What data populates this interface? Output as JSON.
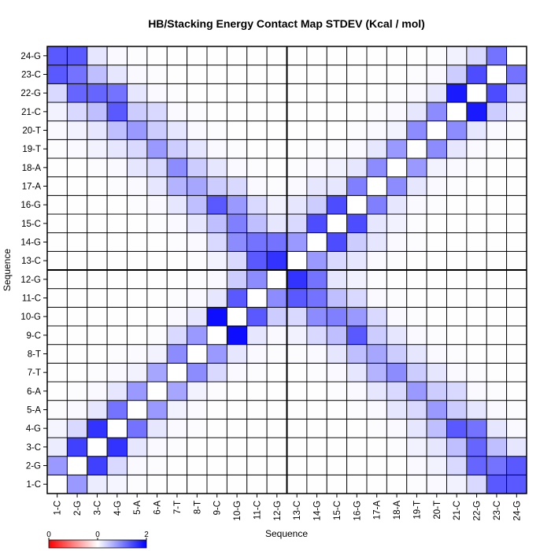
{
  "chart_data": {
    "type": "heatmap",
    "title": "HB/Stacking Energy Contact Map STDEV (Kcal / mol)",
    "xlabel": "Sequence",
    "ylabel": "Sequence",
    "categories": [
      "1-C",
      "2-G",
      "3-C",
      "4-G",
      "5-A",
      "6-A",
      "7-T",
      "8-T",
      "9-C",
      "10-G",
      "11-C",
      "12-G",
      "13-C",
      "14-G",
      "15-C",
      "16-G",
      "17-A",
      "18-A",
      "19-T",
      "20-T",
      "21-C",
      "22-G",
      "23-C",
      "24-G"
    ],
    "color_scale": {
      "min": 0,
      "mid": 0,
      "max": 2,
      "low_color": "#ff0000",
      "mid_color": "#ffffff",
      "high_color": "#0000ff"
    },
    "colorbar_ticks": [
      "0",
      "0",
      "2"
    ],
    "grid": true,
    "major_dividers_after_index": 12,
    "values": [
      [
        0.0,
        0.8,
        0.15,
        0.08,
        0.02,
        0.01,
        0.01,
        0.01,
        0.01,
        0.01,
        0.01,
        0.01,
        0.01,
        0.01,
        0.01,
        0.01,
        0.01,
        0.01,
        0.02,
        0.05,
        0.1,
        0.3,
        1.3,
        1.3
      ],
      [
        0.8,
        0.0,
        1.5,
        0.3,
        0.05,
        0.02,
        0.01,
        0.01,
        0.01,
        0.01,
        0.01,
        0.01,
        0.01,
        0.01,
        0.01,
        0.01,
        0.01,
        0.01,
        0.05,
        0.1,
        0.3,
        1.2,
        1.1,
        1.3
      ],
      [
        0.15,
        1.5,
        0.0,
        1.6,
        0.2,
        0.05,
        0.02,
        0.01,
        0.01,
        0.01,
        0.01,
        0.01,
        0.01,
        0.01,
        0.01,
        0.01,
        0.01,
        0.02,
        0.1,
        0.2,
        0.5,
        1.2,
        0.5,
        0.2
      ],
      [
        0.08,
        0.3,
        1.6,
        0.0,
        1.1,
        0.2,
        0.05,
        0.02,
        0.01,
        0.01,
        0.01,
        0.01,
        0.01,
        0.01,
        0.01,
        0.01,
        0.02,
        0.05,
        0.2,
        0.5,
        1.3,
        1.1,
        0.2,
        0.05
      ],
      [
        0.02,
        0.05,
        0.2,
        1.1,
        0.0,
        0.8,
        0.1,
        0.03,
        0.01,
        0.01,
        0.01,
        0.01,
        0.01,
        0.01,
        0.01,
        0.02,
        0.05,
        0.2,
        0.3,
        0.8,
        0.4,
        0.2,
        0.05,
        0.02
      ],
      [
        0.01,
        0.02,
        0.05,
        0.2,
        0.8,
        0.0,
        0.7,
        0.1,
        0.02,
        0.01,
        0.01,
        0.01,
        0.01,
        0.01,
        0.02,
        0.05,
        0.2,
        0.3,
        0.8,
        0.4,
        0.3,
        0.05,
        0.02,
        0.01
      ],
      [
        0.01,
        0.01,
        0.02,
        0.05,
        0.1,
        0.7,
        0.0,
        0.9,
        0.3,
        0.05,
        0.02,
        0.01,
        0.01,
        0.02,
        0.05,
        0.2,
        0.6,
        0.9,
        0.4,
        0.2,
        0.05,
        0.02,
        0.01,
        0.01
      ],
      [
        0.01,
        0.01,
        0.01,
        0.02,
        0.03,
        0.1,
        0.9,
        0.0,
        0.8,
        0.2,
        0.05,
        0.02,
        0.02,
        0.05,
        0.2,
        0.5,
        0.7,
        0.4,
        0.2,
        0.05,
        0.02,
        0.01,
        0.01,
        0.01
      ],
      [
        0.01,
        0.01,
        0.01,
        0.01,
        0.01,
        0.02,
        0.3,
        0.8,
        0.0,
        1.9,
        0.2,
        0.05,
        0.1,
        0.3,
        0.5,
        1.3,
        0.4,
        0.2,
        0.05,
        0.02,
        0.01,
        0.01,
        0.01,
        0.01
      ],
      [
        0.01,
        0.01,
        0.01,
        0.01,
        0.01,
        0.01,
        0.05,
        0.2,
        1.9,
        0.0,
        1.3,
        0.4,
        0.3,
        0.9,
        1.0,
        0.8,
        0.3,
        0.05,
        0.02,
        0.01,
        0.01,
        0.01,
        0.01,
        0.01
      ],
      [
        0.01,
        0.01,
        0.01,
        0.01,
        0.01,
        0.01,
        0.02,
        0.05,
        0.2,
        1.3,
        0.0,
        0.9,
        1.3,
        1.1,
        0.5,
        0.3,
        0.05,
        0.02,
        0.01,
        0.01,
        0.01,
        0.01,
        0.01,
        0.01
      ],
      [
        0.01,
        0.01,
        0.01,
        0.01,
        0.01,
        0.01,
        0.01,
        0.02,
        0.05,
        0.4,
        0.9,
        0.0,
        1.6,
        1.1,
        0.2,
        0.1,
        0.02,
        0.01,
        0.01,
        0.01,
        0.01,
        0.01,
        0.01,
        0.01
      ],
      [
        0.01,
        0.01,
        0.01,
        0.01,
        0.01,
        0.01,
        0.01,
        0.02,
        0.1,
        0.3,
        1.3,
        1.6,
        0.0,
        0.8,
        0.3,
        0.2,
        0.05,
        0.02,
        0.01,
        0.01,
        0.01,
        0.01,
        0.01,
        0.01
      ],
      [
        0.01,
        0.01,
        0.01,
        0.01,
        0.01,
        0.01,
        0.02,
        0.05,
        0.3,
        0.9,
        1.1,
        1.1,
        0.8,
        0.0,
        1.4,
        0.4,
        0.2,
        0.05,
        0.02,
        0.01,
        0.01,
        0.01,
        0.01,
        0.01
      ],
      [
        0.01,
        0.01,
        0.01,
        0.01,
        0.01,
        0.02,
        0.05,
        0.2,
        0.5,
        1.0,
        0.5,
        0.2,
        0.3,
        1.4,
        0.0,
        1.4,
        0.2,
        0.1,
        0.02,
        0.01,
        0.01,
        0.01,
        0.01,
        0.01
      ],
      [
        0.01,
        0.01,
        0.01,
        0.01,
        0.02,
        0.05,
        0.2,
        0.5,
        1.3,
        0.8,
        0.3,
        0.1,
        0.2,
        0.4,
        1.4,
        0.0,
        1.0,
        0.2,
        0.05,
        0.02,
        0.01,
        0.01,
        0.01,
        0.01
      ],
      [
        0.01,
        0.01,
        0.01,
        0.02,
        0.05,
        0.2,
        0.6,
        0.7,
        0.4,
        0.3,
        0.05,
        0.02,
        0.05,
        0.2,
        0.2,
        1.0,
        0.0,
        0.9,
        0.2,
        0.05,
        0.02,
        0.01,
        0.01,
        0.01
      ],
      [
        0.01,
        0.01,
        0.02,
        0.05,
        0.2,
        0.3,
        0.9,
        0.4,
        0.2,
        0.05,
        0.02,
        0.01,
        0.02,
        0.05,
        0.1,
        0.2,
        0.9,
        0.0,
        0.8,
        0.1,
        0.05,
        0.02,
        0.01,
        0.01
      ],
      [
        0.02,
        0.05,
        0.1,
        0.2,
        0.3,
        0.8,
        0.4,
        0.2,
        0.05,
        0.02,
        0.01,
        0.01,
        0.01,
        0.02,
        0.02,
        0.05,
        0.2,
        0.8,
        0.0,
        0.9,
        0.2,
        0.05,
        0.02,
        0.01
      ],
      [
        0.05,
        0.1,
        0.2,
        0.5,
        0.8,
        0.4,
        0.2,
        0.05,
        0.02,
        0.01,
        0.01,
        0.01,
        0.01,
        0.01,
        0.01,
        0.02,
        0.05,
        0.1,
        0.9,
        0.0,
        0.9,
        0.2,
        0.05,
        0.02
      ],
      [
        0.1,
        0.3,
        0.5,
        1.3,
        0.4,
        0.3,
        0.05,
        0.02,
        0.01,
        0.01,
        0.01,
        0.01,
        0.01,
        0.01,
        0.01,
        0.01,
        0.02,
        0.05,
        0.2,
        0.9,
        0.0,
        1.8,
        0.4,
        0.1
      ],
      [
        0.3,
        1.2,
        1.2,
        1.1,
        0.2,
        0.05,
        0.02,
        0.01,
        0.01,
        0.01,
        0.01,
        0.01,
        0.01,
        0.01,
        0.01,
        0.01,
        0.01,
        0.02,
        0.05,
        0.2,
        1.8,
        0.0,
        1.4,
        0.3
      ],
      [
        1.3,
        1.1,
        0.5,
        0.2,
        0.05,
        0.02,
        0.01,
        0.01,
        0.01,
        0.01,
        0.01,
        0.01,
        0.01,
        0.01,
        0.01,
        0.01,
        0.01,
        0.01,
        0.02,
        0.05,
        0.4,
        1.4,
        0.0,
        1.1
      ],
      [
        1.3,
        1.3,
        0.2,
        0.05,
        0.02,
        0.01,
        0.01,
        0.01,
        0.01,
        0.01,
        0.01,
        0.01,
        0.01,
        0.01,
        0.01,
        0.01,
        0.01,
        0.01,
        0.01,
        0.02,
        0.1,
        0.3,
        1.1,
        0.0
      ]
    ]
  }
}
